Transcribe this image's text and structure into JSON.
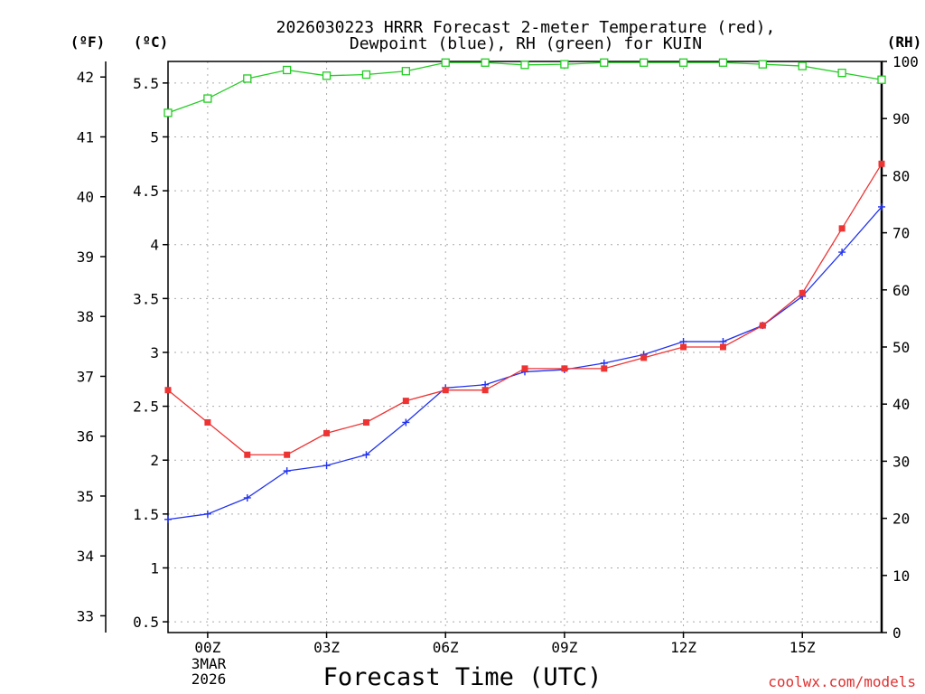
{
  "chart_data": {
    "type": "line",
    "title_line1": "2026030223 HRRR Forecast 2-meter Temperature (red),",
    "title_line2": "Dewpoint (blue), RH (green) for KUIN",
    "xlabel": "Forecast Time (UTC)",
    "credit": "coolwx.com/models",
    "date_label_line1": "3MAR",
    "date_label_line2": "2026",
    "unit_f": "(ºF)",
    "unit_c": "(ºC)",
    "unit_rh": "(RH)",
    "x_range_hours": [
      -1,
      17
    ],
    "x_ticks": [
      {
        "hour": 0,
        "label": "00Z"
      },
      {
        "hour": 3,
        "label": "03Z"
      },
      {
        "hour": 6,
        "label": "06Z"
      },
      {
        "hour": 9,
        "label": "09Z"
      },
      {
        "hour": 12,
        "label": "12Z"
      },
      {
        "hour": 15,
        "label": "15Z"
      }
    ],
    "c_range": [
      0.4,
      5.7
    ],
    "c_ticks": [
      "0.5",
      "1",
      "1.5",
      "2",
      "2.5",
      "3",
      "3.5",
      "4",
      "4.5",
      "5",
      "5.5"
    ],
    "f_ticks": [
      "33",
      "34",
      "35",
      "36",
      "37",
      "38",
      "39",
      "40",
      "41",
      "42"
    ],
    "rh_range": [
      0,
      100
    ],
    "rh_ticks": [
      "0",
      "10",
      "20",
      "30",
      "40",
      "50",
      "60",
      "70",
      "80",
      "90",
      "100"
    ],
    "hours": [
      -1,
      0,
      1,
      2,
      3,
      4,
      5,
      6,
      7,
      8,
      9,
      10,
      11,
      12,
      13,
      14,
      15,
      16,
      17
    ],
    "series": [
      {
        "name": "Temperature",
        "axis": "C",
        "color": "#ee3333",
        "marker": "filled-square",
        "values": [
          2.65,
          2.35,
          2.05,
          2.05,
          2.25,
          2.35,
          2.55,
          2.65,
          2.65,
          2.85,
          2.85,
          2.85,
          2.95,
          3.05,
          3.05,
          3.25,
          3.55,
          4.15,
          4.75
        ]
      },
      {
        "name": "Dewpoint",
        "axis": "C",
        "color": "#2233ee",
        "marker": "plus",
        "values": [
          1.45,
          1.5,
          1.65,
          1.9,
          1.95,
          2.05,
          2.35,
          2.67,
          2.7,
          2.82,
          2.84,
          2.9,
          2.98,
          3.1,
          3.1,
          3.25,
          3.52,
          3.93,
          4.35
        ]
      },
      {
        "name": "RH",
        "axis": "RH",
        "color": "#22cc22",
        "marker": "open-square",
        "values": [
          91,
          93.5,
          97,
          98.5,
          97.5,
          97.7,
          98.3,
          99.8,
          99.8,
          99.4,
          99.5,
          99.8,
          99.8,
          99.8,
          99.8,
          99.5,
          99.2,
          98,
          96.8
        ]
      }
    ]
  }
}
